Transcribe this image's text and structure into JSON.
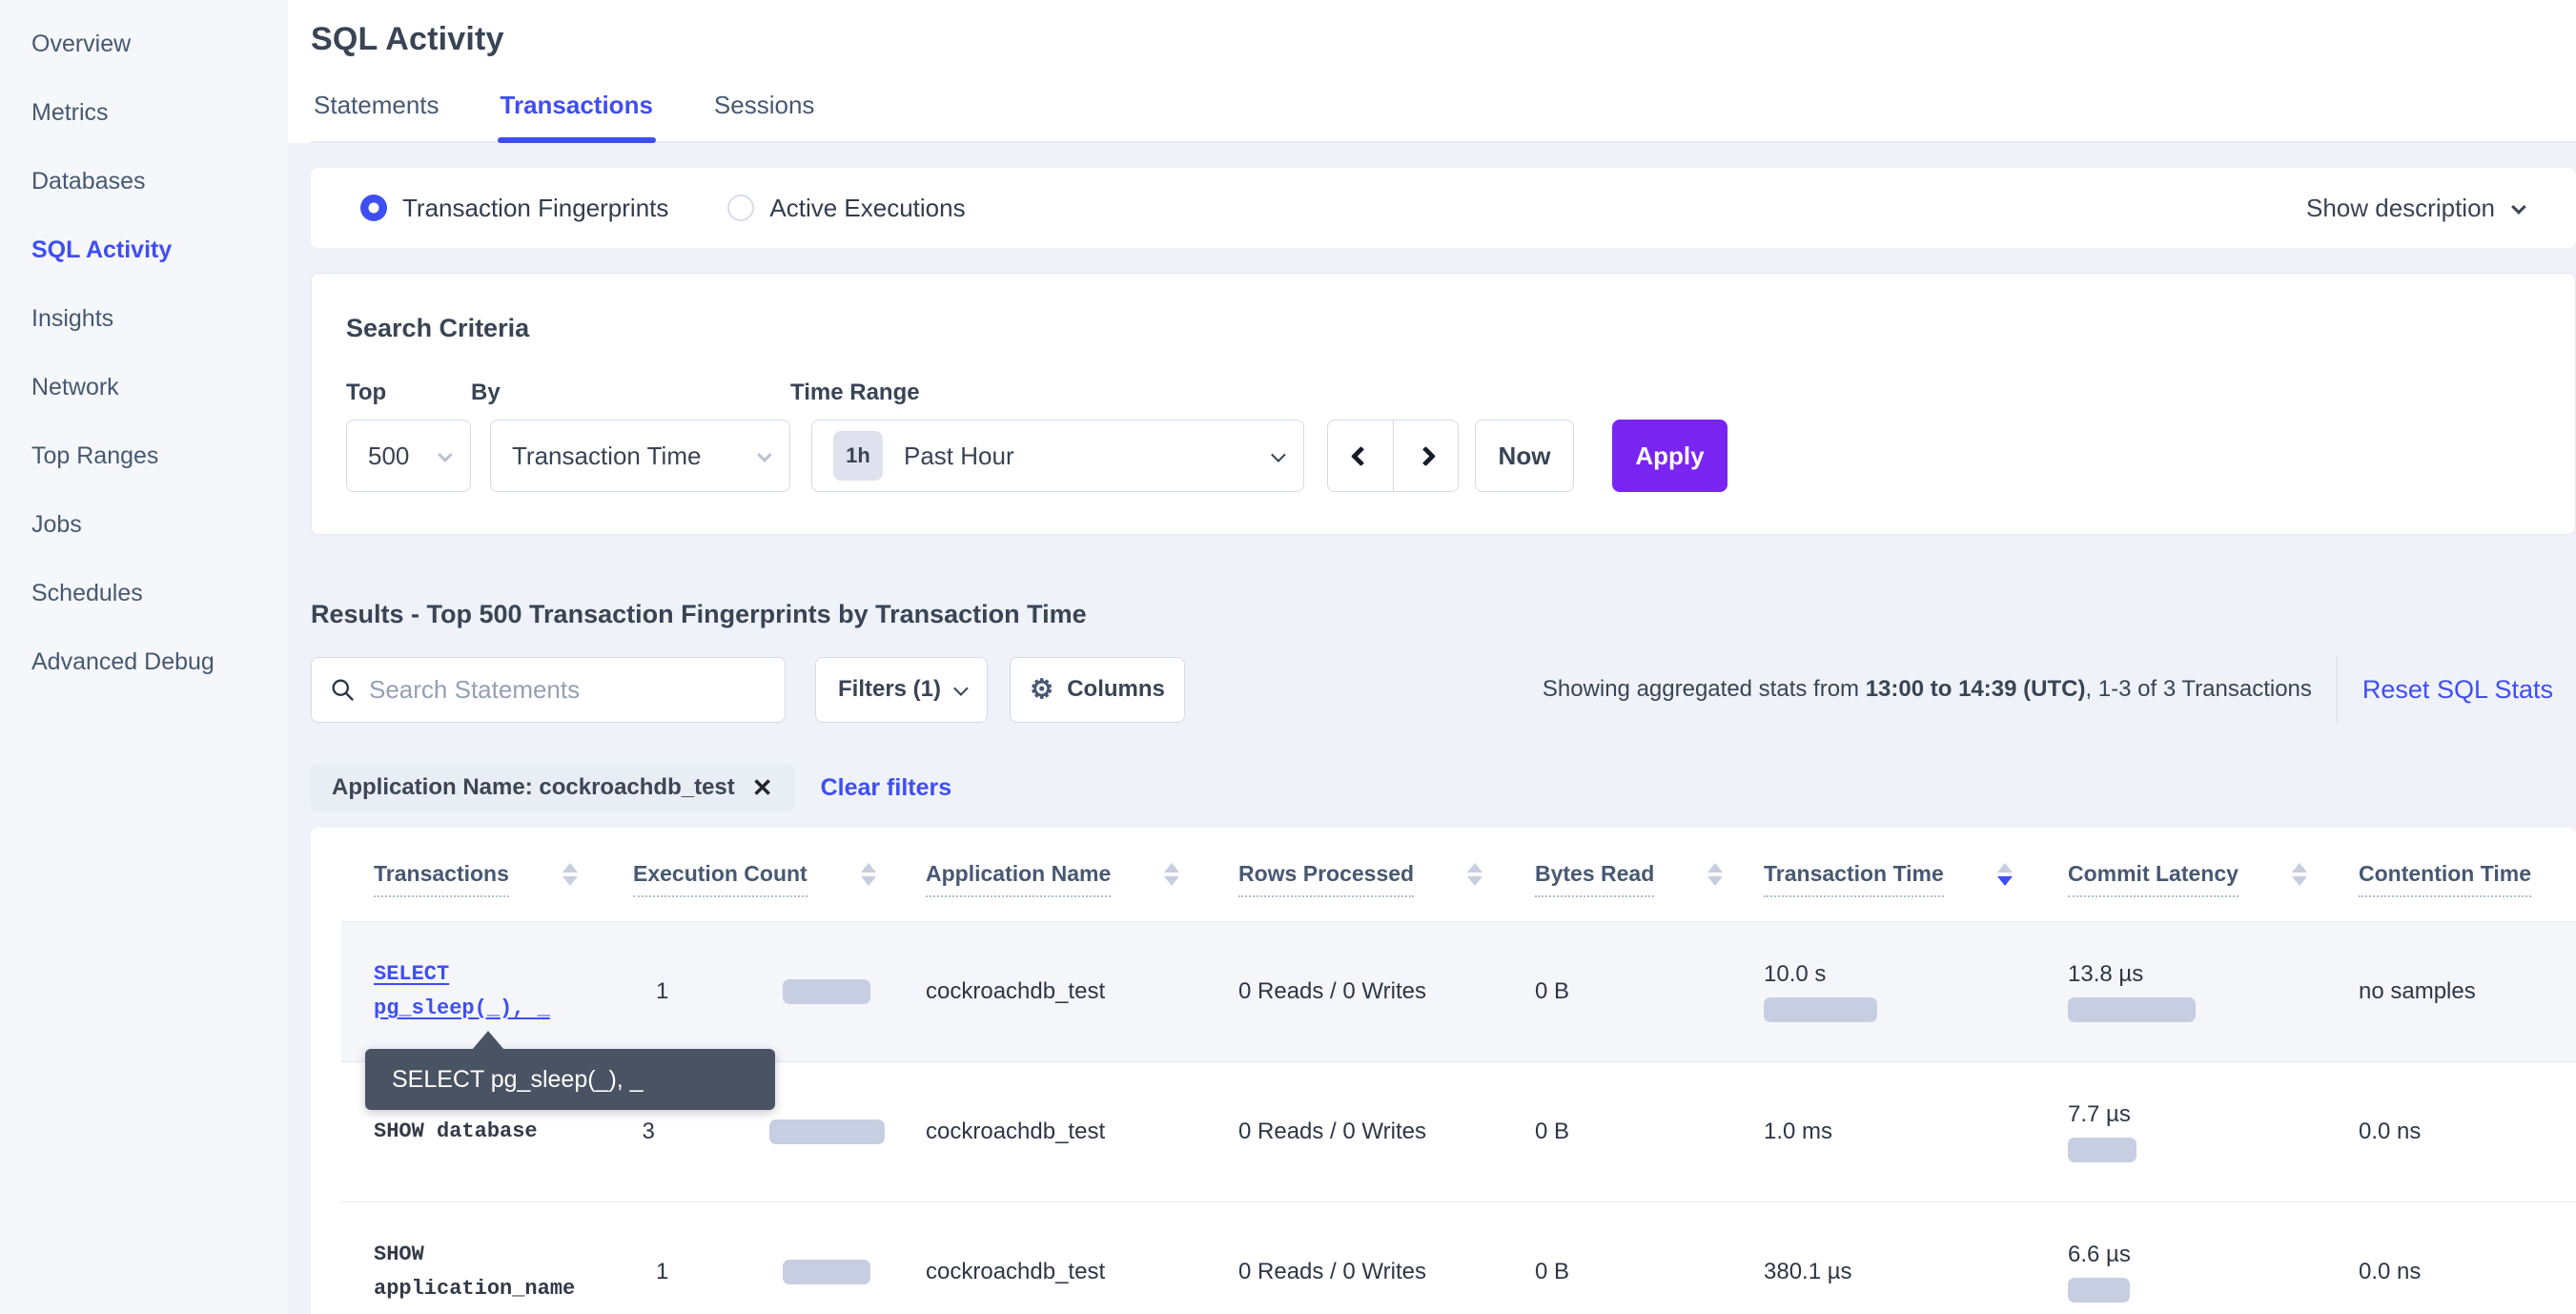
{
  "colors": {
    "accent_blue": "#3f4ef2",
    "accent_purple": "#7a24f1",
    "bar_fill": "#c8cee2",
    "row_highlight": "#f4f6fa",
    "tooltip_bg": "#4a5363"
  },
  "sidebar": {
    "items": [
      {
        "label": "Overview",
        "active": false
      },
      {
        "label": "Metrics",
        "active": false
      },
      {
        "label": "Databases",
        "active": false
      },
      {
        "label": "SQL Activity",
        "active": true
      },
      {
        "label": "Insights",
        "active": false
      },
      {
        "label": "Network",
        "active": false
      },
      {
        "label": "Top Ranges",
        "active": false
      },
      {
        "label": "Jobs",
        "active": false
      },
      {
        "label": "Schedules",
        "active": false
      },
      {
        "label": "Advanced Debug",
        "active": false
      }
    ]
  },
  "header": {
    "title": "SQL Activity",
    "tabs": [
      {
        "label": "Statements",
        "active": false
      },
      {
        "label": "Transactions",
        "active": true
      },
      {
        "label": "Sessions",
        "active": false
      }
    ]
  },
  "view_toggle": {
    "options": [
      {
        "label": "Transaction Fingerprints",
        "selected": true
      },
      {
        "label": "Active Executions",
        "selected": false
      }
    ],
    "show_description_label": "Show description"
  },
  "criteria": {
    "heading": "Search Criteria",
    "top_label": "Top",
    "top_value": "500",
    "by_label": "By",
    "by_value": "Transaction Time",
    "time_label": "Time Range",
    "time_badge": "1h",
    "time_value": "Past Hour",
    "now_label": "Now",
    "apply_label": "Apply"
  },
  "results": {
    "heading": "Results - Top 500 Transaction Fingerprints by Transaction Time",
    "search_placeholder": "Search Statements",
    "filters_label": "Filters (1)",
    "columns_label": "Columns",
    "stats_prefix": "Showing aggregated stats from ",
    "stats_range": "13:00 to 14:39 (UTC)",
    "stats_suffix": ", 1-3 of 3 Transactions",
    "reset_label": "Reset SQL Stats",
    "filter_chip_label": "Application Name: cockroachdb_test",
    "clear_filters_label": "Clear filters"
  },
  "table": {
    "columns": [
      {
        "label": "Transactions",
        "sort": "none",
        "arrows": true
      },
      {
        "label": "Execution Count",
        "sort": "none",
        "arrows": true
      },
      {
        "label": "Application Name",
        "sort": "none",
        "arrows": true
      },
      {
        "label": "Rows Processed",
        "sort": "none",
        "arrows": true
      },
      {
        "label": "Bytes Read",
        "sort": "none",
        "arrows": true
      },
      {
        "label": "Transaction Time",
        "sort": "desc",
        "arrows": true
      },
      {
        "label": "Commit Latency",
        "sort": "none",
        "arrows": true
      },
      {
        "label": "Contention Time",
        "sort": "none",
        "arrows": false
      }
    ],
    "rows": [
      {
        "transaction": "SELECT pg_sleep(_), _",
        "link": true,
        "highlighted": true,
        "execution_count": "1",
        "execution_bar": 92,
        "application_name": "cockroachdb_test",
        "rows_processed": "0 Reads / 0 Writes",
        "bytes_read": "0 B",
        "transaction_time": "10.0 s",
        "transaction_time_bar": 119,
        "commit_latency": "13.8 µs",
        "commit_latency_bar": 134,
        "contention_time": "no samples"
      },
      {
        "transaction": "SHOW database",
        "link": false,
        "highlighted": false,
        "execution_count": "3",
        "execution_bar": 121,
        "application_name": "cockroachdb_test",
        "rows_processed": "0 Reads / 0 Writes",
        "bytes_read": "0 B",
        "transaction_time": "1.0 ms",
        "transaction_time_bar": 0,
        "commit_latency": "7.7 µs",
        "commit_latency_bar": 72,
        "contention_time": "0.0 ns"
      },
      {
        "transaction": "SHOW application_name",
        "link": false,
        "highlighted": false,
        "execution_count": "1",
        "execution_bar": 92,
        "application_name": "cockroachdb_test",
        "rows_processed": "0 Reads / 0 Writes",
        "bytes_read": "0 B",
        "transaction_time": "380.1 µs",
        "transaction_time_bar": 0,
        "commit_latency": "6.6 µs",
        "commit_latency_bar": 65,
        "contention_time": "0.0 ns"
      }
    ]
  },
  "tooltip": {
    "text": "SELECT pg_sleep(_), _"
  }
}
